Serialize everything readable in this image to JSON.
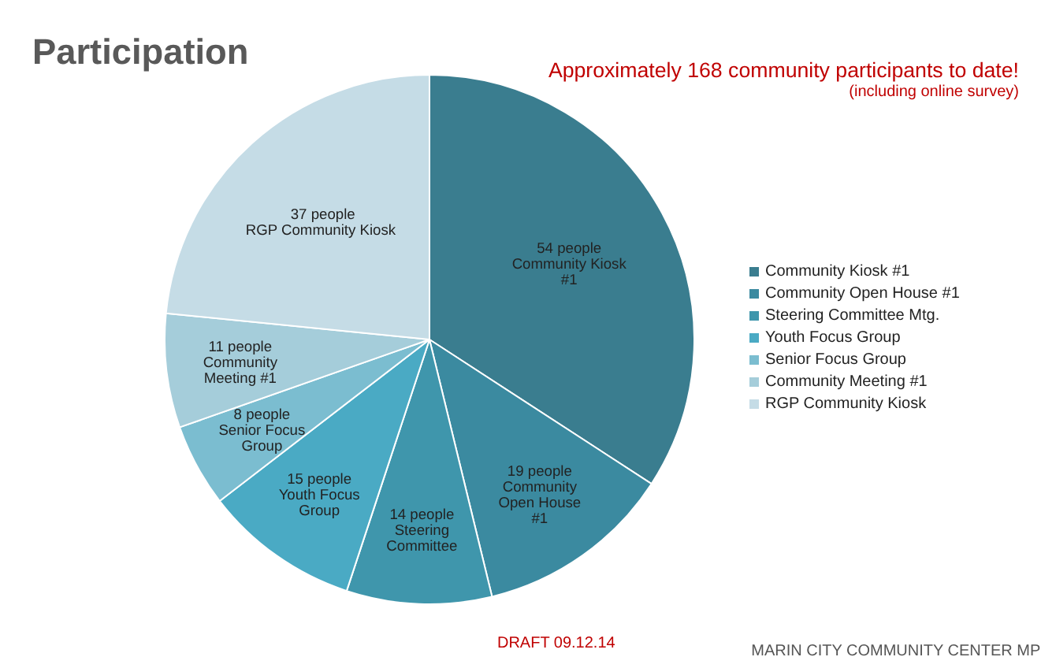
{
  "chart_data": {
    "type": "pie",
    "title": "Participation",
    "subtitle": "Approximately 168 community participants to date!",
    "categories": [
      "Community Kiosk #1",
      "Community Open House #1",
      "Steering Committee Mtg.",
      "Youth Focus Group",
      "Senior Focus Group",
      "Community Meeting #1",
      "RGP Community Kiosk"
    ],
    "values": [
      54,
      19,
      14,
      15,
      8,
      11,
      37
    ],
    "colors": [
      "#3a7d8f",
      "#3b8aa0",
      "#3f96ac",
      "#4aaac4",
      "#7bbdd0",
      "#a5cdda",
      "#c5dce6"
    ],
    "value_labels": [
      "54 people\nCommunity Kiosk\n#1",
      "19 people\nCommunity\nOpen House\n#1",
      "14 people\nSteering\nCommittee",
      "15 people\nYouth Focus\nGroup",
      "8 people\nSenior Focus\nGroup",
      "11 people\nCommunity\nMeeting #1",
      "37 people\nRGP Community  Kiosk"
    ],
    "legend": "right",
    "annotations": [
      "(including online survey)",
      "DRAFT 09.12.14",
      "MARIN CITY COMMUNITY CENTER MP"
    ]
  }
}
